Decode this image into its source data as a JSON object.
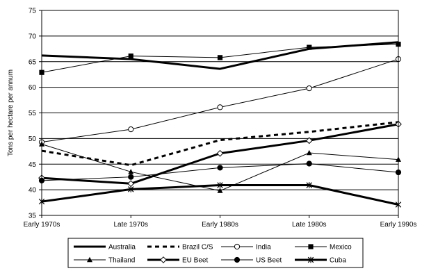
{
  "chart_data": {
    "type": "line",
    "categories": [
      "Early 1970s",
      "Late 1970s",
      "Early 1980s",
      "Late 1980s",
      "Early 1990s"
    ],
    "ylabel": "Tons per hectare per annum",
    "ylim": [
      35,
      75
    ],
    "yticks": [
      "35",
      "40",
      "45",
      "50",
      "55",
      "60",
      "65",
      "70",
      "75"
    ],
    "grid": true,
    "legend_position": "bottom",
    "series": [
      {
        "name": "Australia",
        "values": [
          66.2,
          65.5,
          63.6,
          67.5,
          68.8
        ],
        "style": "thick",
        "marker": "none"
      },
      {
        "name": "Brazil C/S",
        "values": [
          47.6,
          44.8,
          49.7,
          51.3,
          53.2
        ],
        "style": "dashed",
        "marker": "none"
      },
      {
        "name": "India",
        "values": [
          49.3,
          51.8,
          56.1,
          59.8,
          65.5
        ],
        "style": "thin",
        "marker": "circle-open"
      },
      {
        "name": "Mexico",
        "values": [
          62.9,
          66.1,
          65.8,
          67.8,
          68.4
        ],
        "style": "thin",
        "marker": "square"
      },
      {
        "name": "Thailand",
        "values": [
          48.9,
          43.5,
          39.8,
          47.2,
          45.9
        ],
        "style": "thin",
        "marker": "triangle"
      },
      {
        "name": "EU Beet",
        "values": [
          42.3,
          41.2,
          47.1,
          49.6,
          52.8
        ],
        "style": "thick",
        "marker": "diamond-open"
      },
      {
        "name": "US Beet",
        "values": [
          41.8,
          42.5,
          44.3,
          45.1,
          43.4
        ],
        "style": "thin",
        "marker": "circle"
      },
      {
        "name": "Cuba",
        "values": [
          37.7,
          40.1,
          40.9,
          40.9,
          37.1
        ],
        "style": "thick",
        "marker": "star"
      }
    ]
  }
}
